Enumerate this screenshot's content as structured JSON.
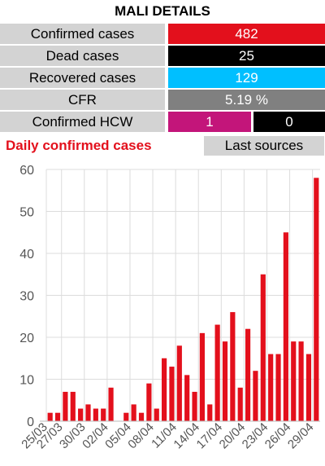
{
  "title": "MALI DETAILS",
  "stats": [
    {
      "label": "Confirmed cases",
      "value": "482",
      "color": "#e3101c"
    },
    {
      "label": "Dead cases",
      "value": "25",
      "color": "#000000"
    },
    {
      "label": "Recovered cases",
      "value": "129",
      "color": "#00bfff"
    },
    {
      "label": "CFR",
      "value": "5.19 %",
      "color": "#808080"
    }
  ],
  "hcw": {
    "label": "Confirmed HCW",
    "value1": "1",
    "value2": "0",
    "color1": "#c3157a",
    "color2": "#000000"
  },
  "daily_title": "Daily confirmed cases",
  "daily_title_color": "#e3101c",
  "sources_button": "Last sources",
  "chart_data": {
    "type": "bar",
    "title": "",
    "xlabel": "",
    "ylabel": "",
    "ylim": [
      0,
      60
    ],
    "yticks": [
      0,
      10,
      20,
      30,
      40,
      50,
      60
    ],
    "grid": true,
    "bar_color": "#e3101c",
    "xtick_labels": [
      "25/03",
      "27/03",
      "30/03",
      "02/04",
      "05/04",
      "08/04",
      "11/04",
      "14/04",
      "17/04",
      "20/04",
      "23/04",
      "26/04",
      "29/04"
    ],
    "xtick_indices": [
      0,
      2,
      5,
      8,
      11,
      14,
      17,
      20,
      23,
      26,
      29,
      32,
      35
    ],
    "categories": [
      "25/03",
      "26/03",
      "27/03",
      "28/03",
      "29/03",
      "30/03",
      "31/03",
      "01/04",
      "02/04",
      "03/04",
      "04/04",
      "05/04",
      "06/04",
      "07/04",
      "08/04",
      "09/04",
      "10/04",
      "11/04",
      "12/04",
      "13/04",
      "14/04",
      "15/04",
      "16/04",
      "17/04",
      "18/04",
      "19/04",
      "20/04",
      "21/04",
      "22/04",
      "23/04",
      "24/04",
      "25/04",
      "26/04",
      "27/04",
      "28/04",
      "29/04"
    ],
    "values": [
      2,
      2,
      7,
      7,
      3,
      4,
      3,
      3,
      8,
      0,
      2,
      4,
      2,
      9,
      3,
      15,
      13,
      18,
      11,
      7,
      21,
      4,
      23,
      19,
      26,
      8,
      22,
      12,
      35,
      16,
      16,
      45,
      19,
      19,
      16,
      58
    ]
  }
}
